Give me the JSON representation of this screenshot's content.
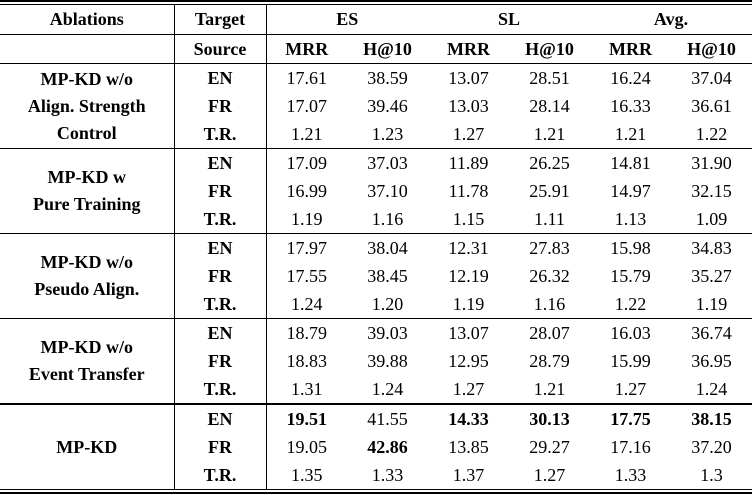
{
  "colors": {
    "background": "#ffffff",
    "text": "#000000",
    "rule": "#000000"
  },
  "table": {
    "header": {
      "ablations": "Ablations",
      "target": "Target",
      "source": "Source",
      "groups": [
        {
          "label": "ES"
        },
        {
          "label": "SL"
        },
        {
          "label": "Avg."
        }
      ],
      "metrics": [
        "MRR",
        "H@10",
        "MRR",
        "H@10",
        "MRR",
        "H@10"
      ]
    },
    "blocks": [
      {
        "label": "MP-KD w/o Align. Strength Control",
        "label_lines": [
          "MP-KD w/o",
          "Align. Strength",
          "Control"
        ],
        "rows": [
          {
            "source": "EN",
            "values": [
              "17.61",
              "38.59",
              "13.07",
              "28.51",
              "16.24",
              "37.04"
            ],
            "bold": [
              false,
              false,
              false,
              false,
              false,
              false
            ]
          },
          {
            "source": "FR",
            "values": [
              "17.07",
              "39.46",
              "13.03",
              "28.14",
              "16.33",
              "36.61"
            ],
            "bold": [
              false,
              false,
              false,
              false,
              false,
              false
            ]
          },
          {
            "source": "T.R.",
            "values": [
              "1.21",
              "1.23",
              "1.27",
              "1.21",
              "1.21",
              "1.22"
            ],
            "bold": [
              false,
              false,
              false,
              false,
              false,
              false
            ]
          }
        ]
      },
      {
        "label": "MP-KD w Pure Training",
        "label_lines": [
          "MP-KD w",
          "Pure Training"
        ],
        "rows": [
          {
            "source": "EN",
            "values": [
              "17.09",
              "37.03",
              "11.89",
              "26.25",
              "14.81",
              "31.90"
            ],
            "bold": [
              false,
              false,
              false,
              false,
              false,
              false
            ]
          },
          {
            "source": "FR",
            "values": [
              "16.99",
              "37.10",
              "11.78",
              "25.91",
              "14.97",
              "32.15"
            ],
            "bold": [
              false,
              false,
              false,
              false,
              false,
              false
            ]
          },
          {
            "source": "T.R.",
            "values": [
              "1.19",
              "1.16",
              "1.15",
              "1.11",
              "1.13",
              "1.09"
            ],
            "bold": [
              false,
              false,
              false,
              false,
              false,
              false
            ]
          }
        ]
      },
      {
        "label": "MP-KD w/o Pseudo Align.",
        "label_lines": [
          "MP-KD w/o",
          "Pseudo Align."
        ],
        "rows": [
          {
            "source": "EN",
            "values": [
              "17.97",
              "38.04",
              "12.31",
              "27.83",
              "15.98",
              "34.83"
            ],
            "bold": [
              false,
              false,
              false,
              false,
              false,
              false
            ]
          },
          {
            "source": "FR",
            "values": [
              "17.55",
              "38.45",
              "12.19",
              "26.32",
              "15.79",
              "35.27"
            ],
            "bold": [
              false,
              false,
              false,
              false,
              false,
              false
            ]
          },
          {
            "source": "T.R.",
            "values": [
              "1.24",
              "1.20",
              "1.19",
              "1.16",
              "1.22",
              "1.19"
            ],
            "bold": [
              false,
              false,
              false,
              false,
              false,
              false
            ]
          }
        ]
      },
      {
        "label": "MP-KD w/o Event Transfer",
        "label_lines": [
          "MP-KD w/o",
          "Event Transfer"
        ],
        "rows": [
          {
            "source": "EN",
            "values": [
              "18.79",
              "39.03",
              "13.07",
              "28.07",
              "16.03",
              "36.74"
            ],
            "bold": [
              false,
              false,
              false,
              false,
              false,
              false
            ]
          },
          {
            "source": "FR",
            "values": [
              "18.83",
              "39.88",
              "12.95",
              "28.79",
              "15.99",
              "36.95"
            ],
            "bold": [
              false,
              false,
              false,
              false,
              false,
              false
            ]
          },
          {
            "source": "T.R.",
            "values": [
              "1.31",
              "1.24",
              "1.27",
              "1.21",
              "1.27",
              "1.24"
            ],
            "bold": [
              false,
              false,
              false,
              false,
              false,
              false
            ]
          }
        ]
      },
      {
        "label": "MP-KD",
        "label_lines": [
          "MP-KD"
        ],
        "rows": [
          {
            "source": "EN",
            "values": [
              "19.51",
              "41.55",
              "14.33",
              "30.13",
              "17.75",
              "38.15"
            ],
            "bold": [
              true,
              false,
              true,
              true,
              true,
              true
            ]
          },
          {
            "source": "FR",
            "values": [
              "19.05",
              "42.86",
              "13.85",
              "29.27",
              "17.16",
              "37.20"
            ],
            "bold": [
              false,
              true,
              false,
              false,
              false,
              false
            ]
          },
          {
            "source": "T.R.",
            "values": [
              "1.35",
              "1.33",
              "1.37",
              "1.27",
              "1.33",
              "1.3"
            ],
            "bold": [
              false,
              false,
              false,
              false,
              false,
              false
            ]
          }
        ]
      }
    ]
  }
}
